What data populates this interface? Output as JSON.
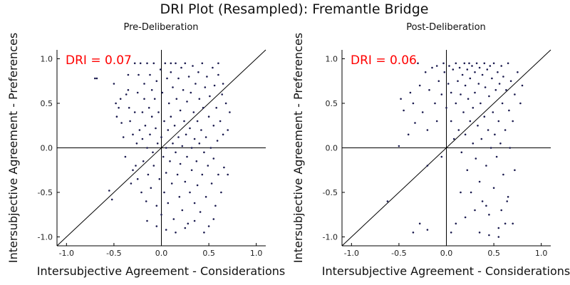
{
  "title": "DRI Plot (Resampled): Fremantle Bridge",
  "colors": {
    "points": "#1a1a4e",
    "annotation": "#ff0000",
    "axes": "#000000"
  },
  "chart_data": [
    {
      "type": "scatter",
      "subtitle": "Pre-Deliberation",
      "xlabel": "Intersubjective Agreement - Considerations",
      "ylabel": "Intersubjective Agreement - Preferences",
      "xlim": [
        -1.1,
        1.1
      ],
      "ylim": [
        -1.1,
        1.1
      ],
      "xticks": [
        -1.0,
        -0.5,
        0.0,
        0.5,
        1.0
      ],
      "yticks": [
        -1.0,
        -0.5,
        0.0,
        0.5,
        1.0
      ],
      "xtick_labels": [
        "-1.0",
        "-0.5",
        "0.0",
        "0.5",
        "1.0"
      ],
      "ytick_labels": [
        "-1.0",
        "-0.5",
        "0.0",
        "0.5",
        "1.0"
      ],
      "annotation": "DRI = 0.07",
      "reference_lines": [
        "x=0",
        "y=0",
        "y=x"
      ],
      "grid": false,
      "points": [
        [
          -0.7,
          0.78
        ],
        [
          -0.68,
          0.78
        ],
        [
          -0.55,
          -0.48
        ],
        [
          -0.52,
          -0.58
        ],
        [
          -0.5,
          0.72
        ],
        [
          -0.48,
          0.5
        ],
        [
          -0.47,
          0.35
        ],
        [
          -0.45,
          0.45
        ],
        [
          -0.43,
          0.55
        ],
        [
          -0.42,
          0.28
        ],
        [
          -0.4,
          0.12
        ],
        [
          -0.38,
          -0.1
        ],
        [
          -0.37,
          0.6
        ],
        [
          -0.35,
          0.65
        ],
        [
          -0.34,
          0.45
        ],
        [
          -0.33,
          0.3
        ],
        [
          -0.32,
          -0.4
        ],
        [
          -0.3,
          0.15
        ],
        [
          -0.3,
          -0.25
        ],
        [
          -0.28,
          0.95
        ],
        [
          -0.28,
          0.4
        ],
        [
          -0.27,
          -0.2
        ],
        [
          -0.26,
          0.05
        ],
        [
          -0.25,
          0.62
        ],
        [
          -0.25,
          -0.35
        ],
        [
          -0.24,
          0.82
        ],
        [
          -0.23,
          0.2
        ],
        [
          -0.22,
          0.95
        ],
        [
          -0.21,
          -0.5
        ],
        [
          -0.2,
          0.4
        ],
        [
          -0.2,
          0.1
        ],
        [
          -0.19,
          -0.15
        ],
        [
          -0.18,
          0.72
        ],
        [
          -0.18,
          0.55
        ],
        [
          -0.17,
          0.25
        ],
        [
          -0.16,
          -0.6
        ],
        [
          -0.15,
          0.95
        ],
        [
          -0.15,
          0.0
        ],
        [
          -0.14,
          -0.3
        ],
        [
          -0.13,
          0.45
        ],
        [
          -0.12,
          0.82
        ],
        [
          -0.12,
          0.15
        ],
        [
          -0.11,
          -0.45
        ],
        [
          -0.1,
          0.65
        ],
        [
          -0.1,
          0.35
        ],
        [
          -0.09,
          -0.05
        ],
        [
          -0.08,
          0.95
        ],
        [
          -0.08,
          -0.2
        ],
        [
          -0.07,
          0.55
        ],
        [
          -0.06,
          0.22
        ],
        [
          -0.05,
          0.75
        ],
        [
          -0.05,
          -0.65
        ],
        [
          -0.04,
          0.05
        ],
        [
          -0.03,
          0.4
        ],
        [
          -0.02,
          -0.35
        ],
        [
          -0.01,
          0.88
        ],
        [
          0.0,
          0.12
        ],
        [
          0.0,
          -0.75
        ],
        [
          0.01,
          0.62
        ],
        [
          0.02,
          -0.1
        ],
        [
          0.03,
          0.3
        ],
        [
          0.03,
          -0.5
        ],
        [
          0.04,
          0.95
        ],
        [
          0.05,
          0.0
        ],
        [
          0.05,
          -0.28
        ],
        [
          0.06,
          0.78
        ],
        [
          0.07,
          0.2
        ],
        [
          0.07,
          -0.62
        ],
        [
          0.08,
          0.5
        ],
        [
          0.09,
          -0.15
        ],
        [
          0.1,
          0.85
        ],
        [
          0.1,
          0.35
        ],
        [
          0.11,
          -0.4
        ],
        [
          0.12,
          0.05
        ],
        [
          0.12,
          0.68
        ],
        [
          0.13,
          -0.8
        ],
        [
          0.14,
          0.25
        ],
        [
          0.15,
          0.95
        ],
        [
          0.15,
          -0.05
        ],
        [
          0.16,
          0.55
        ],
        [
          0.17,
          -0.3
        ],
        [
          0.18,
          0.12
        ],
        [
          0.18,
          0.78
        ],
        [
          0.19,
          -0.55
        ],
        [
          0.2,
          0.42
        ],
        [
          0.2,
          -0.18
        ],
        [
          0.21,
          0.9
        ],
        [
          0.22,
          0.02
        ],
        [
          0.22,
          -0.7
        ],
        [
          0.23,
          0.65
        ],
        [
          0.24,
          0.3
        ],
        [
          0.25,
          -0.38
        ],
        [
          0.25,
          0.95
        ],
        [
          0.26,
          0.15
        ],
        [
          0.27,
          -0.1
        ],
        [
          0.27,
          0.52
        ],
        [
          0.28,
          -0.85
        ],
        [
          0.29,
          0.8
        ],
        [
          0.3,
          0.22
        ],
        [
          0.3,
          -0.5
        ],
        [
          0.31,
          0.62
        ],
        [
          0.32,
          0.0
        ],
        [
          0.32,
          -0.25
        ],
        [
          0.33,
          0.92
        ],
        [
          0.34,
          0.4
        ],
        [
          0.35,
          -0.62
        ],
        [
          0.35,
          0.1
        ],
        [
          0.36,
          0.72
        ],
        [
          0.37,
          -0.15
        ],
        [
          0.38,
          0.3
        ],
        [
          0.38,
          -0.42
        ],
        [
          0.39,
          0.85
        ],
        [
          0.4,
          0.05
        ],
        [
          0.4,
          0.55
        ],
        [
          0.41,
          -0.72
        ],
        [
          0.42,
          0.2
        ],
        [
          0.43,
          -0.3
        ],
        [
          0.43,
          0.95
        ],
        [
          0.44,
          0.45
        ],
        [
          0.45,
          -0.05
        ],
        [
          0.46,
          0.68
        ],
        [
          0.47,
          -0.55
        ],
        [
          0.47,
          0.12
        ],
        [
          0.48,
          0.8
        ],
        [
          0.49,
          -0.2
        ],
        [
          0.5,
          0.35
        ],
        [
          0.5,
          -0.88
        ],
        [
          0.51,
          0.58
        ],
        [
          0.52,
          0.0
        ],
        [
          0.53,
          -0.4
        ],
        [
          0.54,
          0.9
        ],
        [
          0.55,
          0.25
        ],
        [
          0.55,
          -0.12
        ],
        [
          0.56,
          0.7
        ],
        [
          0.57,
          -0.65
        ],
        [
          0.58,
          0.45
        ],
        [
          0.59,
          0.08
        ],
        [
          0.6,
          -0.3
        ],
        [
          0.6,
          0.82
        ],
        [
          0.62,
          0.3
        ],
        [
          0.63,
          -0.5
        ],
        [
          0.64,
          0.6
        ],
        [
          0.65,
          0.15
        ],
        [
          0.66,
          -0.22
        ],
        [
          0.68,
          0.5
        ],
        [
          0.7,
          -0.3
        ],
        [
          0.72,
          0.4
        ],
        [
          -0.15,
          -0.82
        ],
        [
          0.05,
          -0.92
        ],
        [
          0.25,
          -0.9
        ],
        [
          0.45,
          -0.95
        ],
        [
          0.15,
          -0.95
        ],
        [
          -0.05,
          -0.88
        ],
        [
          0.35,
          -0.82
        ],
        [
          0.55,
          -0.8
        ],
        [
          0.1,
          0.95
        ],
        [
          -0.35,
          0.82
        ],
        [
          0.6,
          0.95
        ],
        [
          0.65,
          0.72
        ],
        [
          0.7,
          0.2
        ]
      ]
    },
    {
      "type": "scatter",
      "subtitle": "Post-Deliberation",
      "xlabel": "Intersubjective Agreement - Considerations",
      "ylabel": "Intersubjective Agreement - Preferences",
      "xlim": [
        -1.1,
        1.1
      ],
      "ylim": [
        -1.1,
        1.1
      ],
      "xticks": [
        -1.0,
        -0.5,
        0.0,
        0.5,
        1.0
      ],
      "yticks": [
        -1.0,
        -0.5,
        0.0,
        0.5,
        1.0
      ],
      "xtick_labels": [
        "-1.0",
        "-0.5",
        "0.0",
        "0.5",
        "1.0"
      ],
      "ytick_labels": [
        "-1.0",
        "-0.5",
        "0.0",
        "0.5",
        "1.0"
      ],
      "annotation": "DRI = 0.06",
      "reference_lines": [
        "x=0",
        "y=0",
        "y=x"
      ],
      "grid": false,
      "points": [
        [
          -0.62,
          -0.6
        ],
        [
          -0.48,
          0.55
        ],
        [
          -0.45,
          0.42
        ],
        [
          -0.4,
          0.15
        ],
        [
          -0.38,
          0.62
        ],
        [
          -0.35,
          0.5
        ],
        [
          -0.33,
          0.28
        ],
        [
          -0.3,
          0.95
        ],
        [
          -0.28,
          0.7
        ],
        [
          -0.25,
          0.4
        ],
        [
          -0.22,
          0.85
        ],
        [
          -0.2,
          0.2
        ],
        [
          -0.2,
          -0.2
        ],
        [
          -0.18,
          0.65
        ],
        [
          -0.15,
          0.9
        ],
        [
          -0.12,
          0.5
        ],
        [
          -0.1,
          0.3
        ],
        [
          -0.1,
          0.92
        ],
        [
          -0.08,
          0.75
        ],
        [
          -0.05,
          0.6
        ],
        [
          -0.05,
          -0.1
        ],
        [
          -0.03,
          0.95
        ],
        [
          -0.02,
          0.85
        ],
        [
          0.0,
          0.45
        ],
        [
          0.02,
          0.72
        ],
        [
          0.03,
          0.92
        ],
        [
          0.05,
          0.3
        ],
        [
          0.05,
          0.62
        ],
        [
          0.07,
          0.88
        ],
        [
          0.08,
          0.1
        ],
        [
          0.1,
          0.95
        ],
        [
          0.1,
          0.5
        ],
        [
          0.12,
          0.75
        ],
        [
          0.13,
          0.2
        ],
        [
          0.14,
          0.9
        ],
        [
          0.15,
          0.6
        ],
        [
          0.16,
          -0.05
        ],
        [
          0.17,
          0.82
        ],
        [
          0.18,
          0.4
        ],
        [
          0.19,
          0.95
        ],
        [
          0.2,
          0.7
        ],
        [
          0.2,
          0.15
        ],
        [
          0.22,
          0.88
        ],
        [
          0.22,
          -0.25
        ],
        [
          0.23,
          0.55
        ],
        [
          0.24,
          0.95
        ],
        [
          0.25,
          0.3
        ],
        [
          0.25,
          0.78
        ],
        [
          0.26,
          -0.5
        ],
        [
          0.27,
          0.92
        ],
        [
          0.28,
          0.45
        ],
        [
          0.28,
          0.05
        ],
        [
          0.3,
          0.85
        ],
        [
          0.3,
          0.62
        ],
        [
          0.31,
          -0.12
        ],
        [
          0.32,
          0.95
        ],
        [
          0.33,
          0.25
        ],
        [
          0.34,
          0.72
        ],
        [
          0.35,
          -0.38
        ],
        [
          0.35,
          0.9
        ],
        [
          0.36,
          0.5
        ],
        [
          0.37,
          0.1
        ],
        [
          0.38,
          0.82
        ],
        [
          0.38,
          -0.6
        ],
        [
          0.4,
          0.95
        ],
        [
          0.4,
          0.35
        ],
        [
          0.41,
          0.68
        ],
        [
          0.42,
          -0.2
        ],
        [
          0.43,
          0.88
        ],
        [
          0.44,
          0.2
        ],
        [
          0.45,
          0.58
        ],
        [
          0.45,
          -0.75
        ],
        [
          0.46,
          0.92
        ],
        [
          0.47,
          0.0
        ],
        [
          0.48,
          0.78
        ],
        [
          0.49,
          0.4
        ],
        [
          0.5,
          -0.45
        ],
        [
          0.5,
          0.95
        ],
        [
          0.51,
          0.15
        ],
        [
          0.52,
          0.65
        ],
        [
          0.53,
          -0.1
        ],
        [
          0.54,
          0.85
        ],
        [
          0.55,
          0.3
        ],
        [
          0.55,
          -0.9
        ],
        [
          0.56,
          0.72
        ],
        [
          0.57,
          0.05
        ],
        [
          0.58,
          0.92
        ],
        [
          0.59,
          0.5
        ],
        [
          0.6,
          -0.3
        ],
        [
          0.6,
          0.8
        ],
        [
          0.62,
          0.2
        ],
        [
          0.63,
          0.65
        ],
        [
          0.64,
          -0.6
        ],
        [
          0.65,
          0.95
        ],
        [
          0.66,
          0.42
        ],
        [
          0.67,
          0.0
        ],
        [
          0.68,
          0.75
        ],
        [
          0.7,
          0.3
        ],
        [
          0.72,
          0.6
        ],
        [
          0.75,
          0.85
        ],
        [
          0.78,
          0.5
        ],
        [
          0.8,
          0.7
        ],
        [
          -0.35,
          -0.95
        ],
        [
          -0.28,
          -0.85
        ],
        [
          -0.2,
          -0.92
        ],
        [
          0.05,
          -0.95
        ],
        [
          0.1,
          -0.85
        ],
        [
          0.2,
          -0.78
        ],
        [
          0.35,
          -0.95
        ],
        [
          0.45,
          -0.98
        ],
        [
          0.55,
          -1.0
        ],
        [
          0.62,
          -0.85
        ],
        [
          0.65,
          -0.55
        ],
        [
          0.72,
          -0.25
        ],
        [
          0.7,
          -0.85
        ],
        [
          0.42,
          -0.65
        ],
        [
          0.3,
          -0.7
        ],
        [
          0.15,
          -0.5
        ],
        [
          -0.5,
          0.02
        ],
        [
          0.58,
          -0.7
        ]
      ]
    }
  ]
}
